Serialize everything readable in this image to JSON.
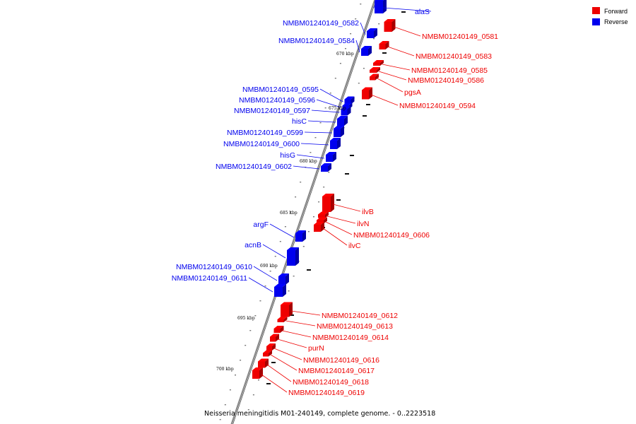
{
  "caption": "Neisseria meningitidis M01-240149, complete genome. - 0..2223518",
  "legend": [
    {
      "label": "Forward",
      "color": "#ee0000"
    },
    {
      "label": "Reverse",
      "color": "#0000ee"
    }
  ],
  "colors": {
    "forward": "#ee0000",
    "reverse": "#0000ee",
    "backbone": "#888888"
  },
  "kbp_labels": [
    "670 kbp",
    "675 kbp",
    "680 kbp",
    "685 kbp",
    "690 kbp",
    "695 kbp",
    "700 kbp"
  ],
  "genes": {
    "forward": [
      "NMBM01240149_0581",
      "NMBM01240149_0583",
      "NMBM01240149_0585",
      "NMBM01240149_0586",
      "pgsA",
      "NMBM01240149_0594",
      "ilvB",
      "ilvN",
      "NMBM01240149_0606",
      "ilvC",
      "NMBM01240149_0612",
      "NMBM01240149_0613",
      "NMBM01240149_0614",
      "purN",
      "NMBM01240149_0616",
      "NMBM01240149_0617",
      "NMBM01240149_0618",
      "NMBM01240149_0619"
    ],
    "reverse": [
      "alaS",
      "NMBM01240149_0582",
      "NMBM01240149_0584",
      "NMBM01240149_0595",
      "NMBM01240149_0596",
      "NMBM01240149_0597",
      "hisC",
      "NMBM01240149_0599",
      "NMBM01240149_0600",
      "hisG",
      "NMBM01240149_0602",
      "argF",
      "acnB",
      "NMBM01240149_0610",
      "NMBM01240149_0611"
    ]
  }
}
